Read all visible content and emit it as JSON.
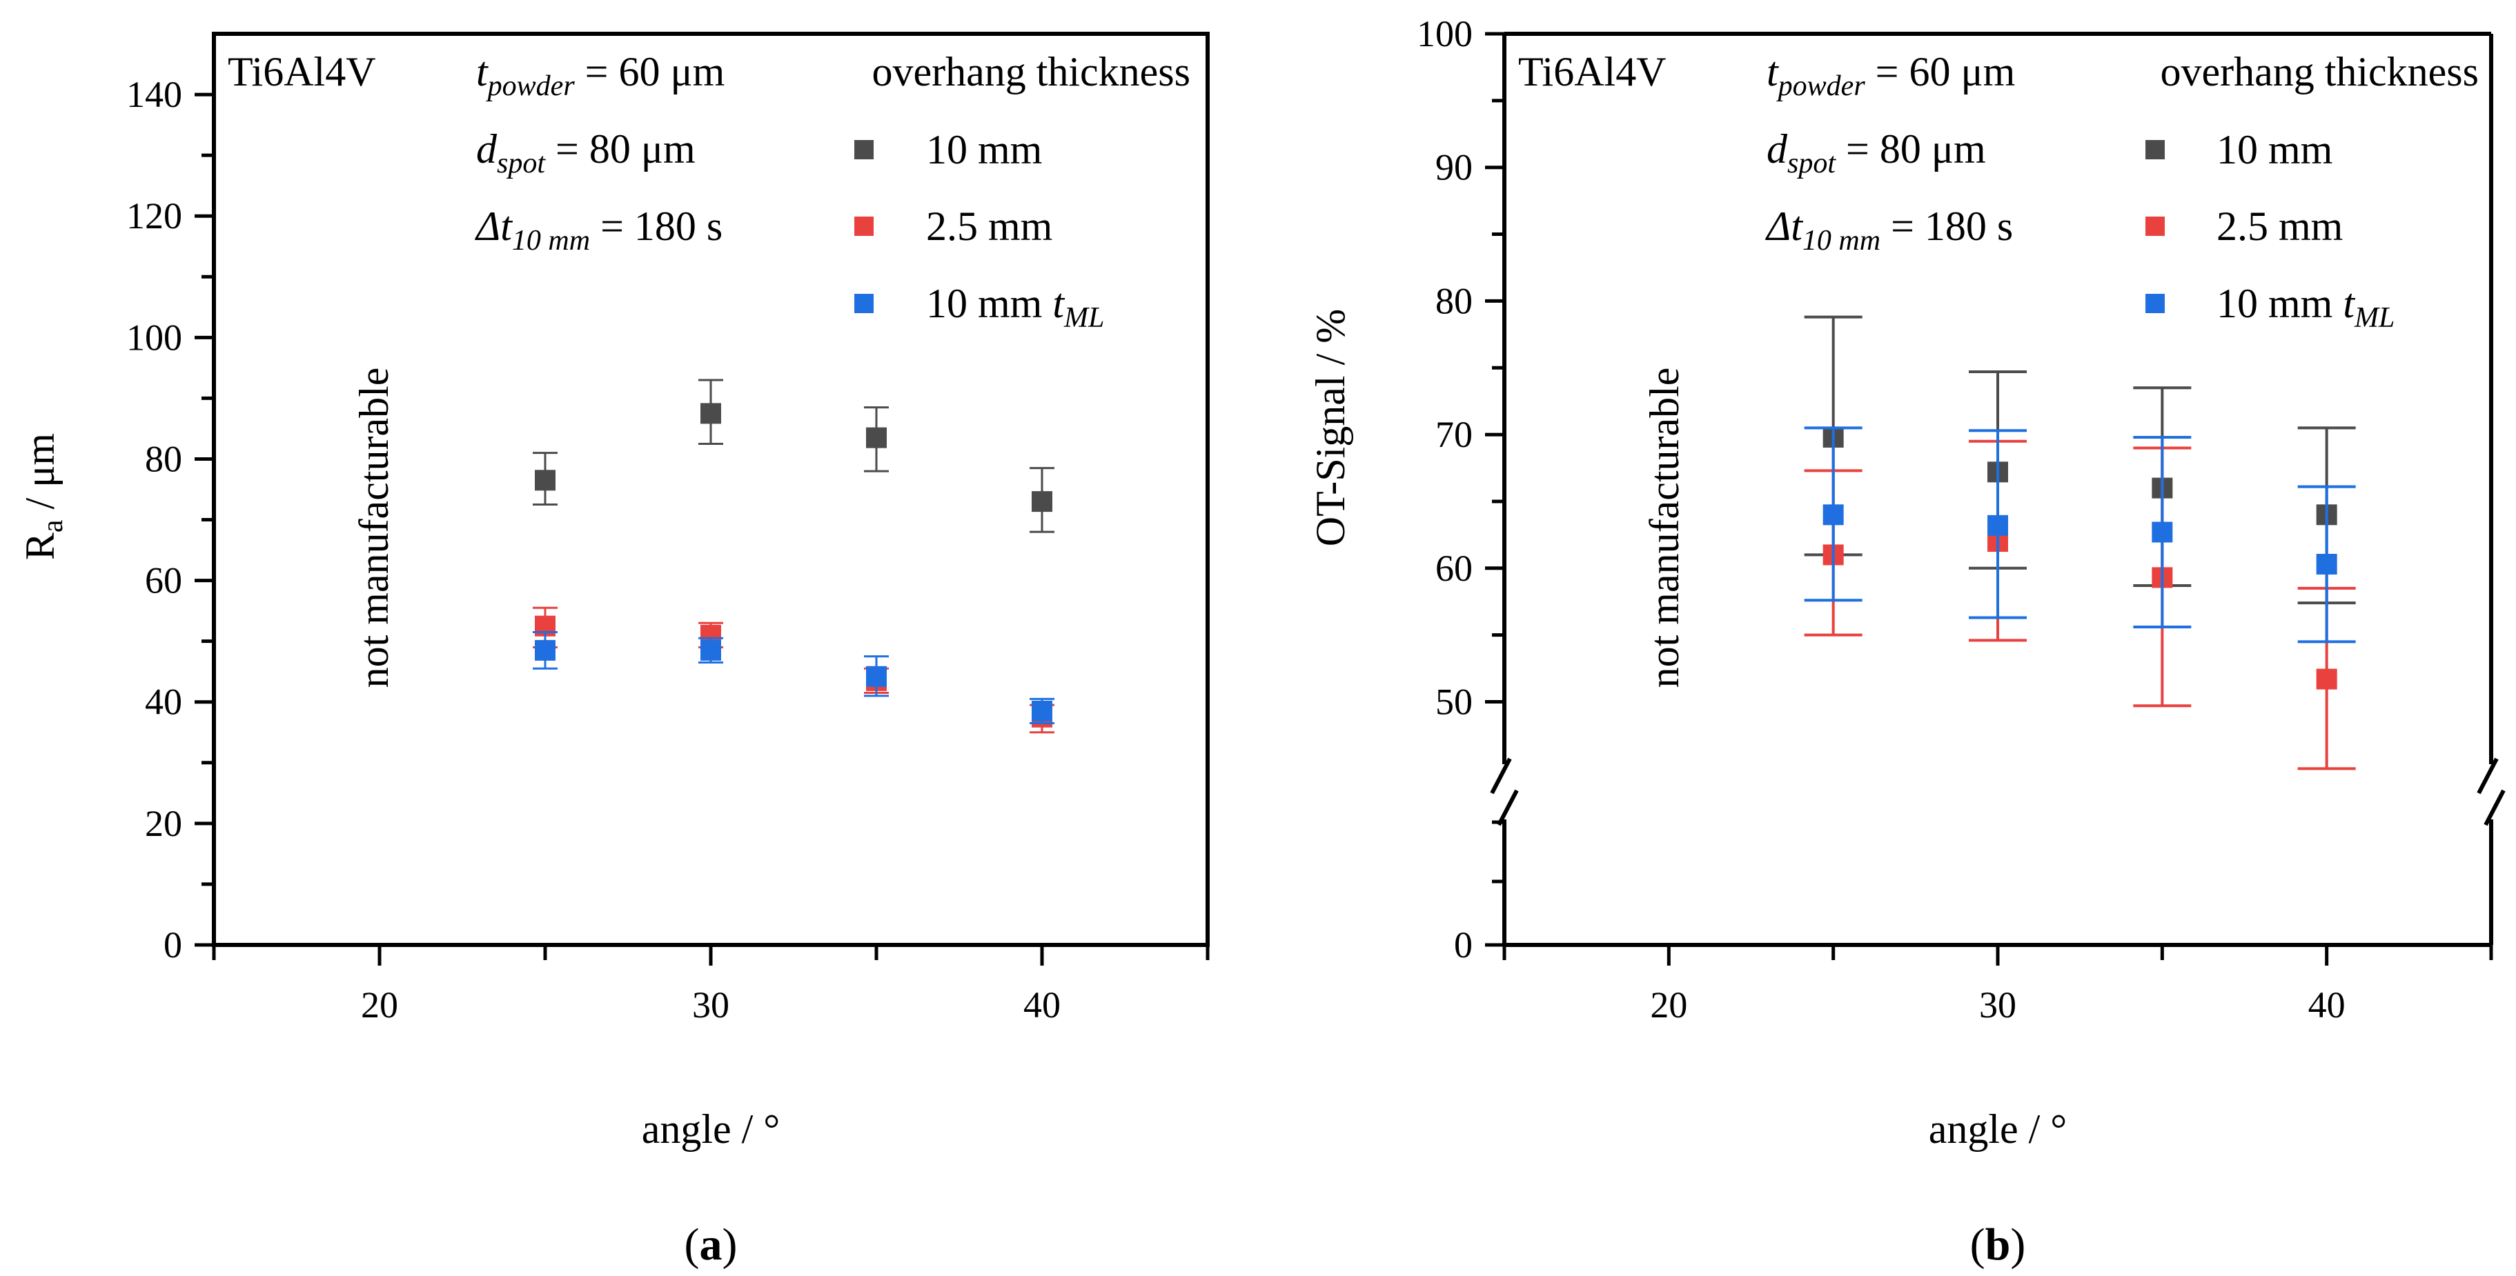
{
  "colors": {
    "thick_10mm": "#4b4b4b",
    "thick_2_5mm": "#e8413e",
    "thick_10mm_tml": "#1f6fe0"
  },
  "legend_title": "overhang thickness",
  "legend": [
    {
      "label": "10 mm",
      "sub": "",
      "color_key": "thick_10mm"
    },
    {
      "label": "2.5 mm",
      "sub": "",
      "color_key": "thick_2_5mm"
    },
    {
      "label": "10 mm t",
      "sub": "ML",
      "color_key": "thick_10mm_tml"
    }
  ],
  "params": {
    "material": "Ti6Al4V",
    "t_powder": {
      "sym": "t",
      "sub": "powder",
      "val": " = 60 μm"
    },
    "d_spot": {
      "sym": "d",
      "sub": "spot",
      "val": " = 80 μm"
    },
    "dt": {
      "sym": "Δt",
      "sub": "10 mm",
      "val": " = 180 s"
    }
  },
  "not_manufacturable": "not manufacturable",
  "chart_data": [
    {
      "type": "scatter",
      "panel_label": "(a)",
      "panel_letter": "a",
      "xlabel": "angle / °",
      "ylabel_main": "R",
      "ylabel_sub": "a",
      "ylabel_rest": " / μm",
      "xlim": [
        15,
        45
      ],
      "ylim": [
        0,
        150
      ],
      "xticks": [
        20,
        30,
        40
      ],
      "yticks": [
        0,
        20,
        40,
        60,
        80,
        100,
        120,
        140
      ],
      "yminor": [
        10,
        30,
        50,
        70,
        90,
        110,
        130
      ],
      "series": [
        {
          "name": "10 mm",
          "color_key": "thick_10mm",
          "points": [
            {
              "x": 25,
              "y": 76.5,
              "lo": 72.5,
              "hi": 81
            },
            {
              "x": 30,
              "y": 87.5,
              "lo": 82.5,
              "hi": 93
            },
            {
              "x": 35,
              "y": 83.5,
              "lo": 78,
              "hi": 88.5
            },
            {
              "x": 40,
              "y": 73,
              "lo": 68,
              "hi": 78.5
            }
          ]
        },
        {
          "name": "2.5 mm",
          "color_key": "thick_2_5mm",
          "points": [
            {
              "x": 25,
              "y": 52.5,
              "lo": 49,
              "hi": 55.5
            },
            {
              "x": 30,
              "y": 51,
              "lo": 49,
              "hi": 53
            },
            {
              "x": 35,
              "y": 43.5,
              "lo": 41.5,
              "hi": 45.5
            },
            {
              "x": 40,
              "y": 37.5,
              "lo": 35,
              "hi": 39.5
            }
          ]
        },
        {
          "name": "10 mm t_ML",
          "color_key": "thick_10mm_tml",
          "points": [
            {
              "x": 25,
              "y": 48.5,
              "lo": 45.5,
              "hi": 51.5
            },
            {
              "x": 30,
              "y": 48.5,
              "lo": 46.5,
              "hi": 50.5
            },
            {
              "x": 35,
              "y": 44.2,
              "lo": 41,
              "hi": 47.5
            },
            {
              "x": 40,
              "y": 38.5,
              "lo": 36.5,
              "hi": 40.5
            }
          ]
        }
      ]
    },
    {
      "type": "scatter",
      "panel_label": "(b)",
      "panel_letter": "b",
      "xlabel": "angle / °",
      "ylabel_main": "OT-Signal / %",
      "ylabel_sub": "",
      "ylabel_rest": "",
      "xlim": [
        15,
        45
      ],
      "ylim": [
        0,
        100
      ],
      "axis_break": true,
      "xticks": [
        20,
        30,
        40
      ],
      "yticks": [
        0,
        50,
        60,
        70,
        80,
        90,
        100
      ],
      "yminor": [
        55,
        65,
        75,
        85,
        95
      ],
      "series": [
        {
          "name": "10 mm",
          "color_key": "thick_10mm",
          "points": [
            {
              "x": 25,
              "y": 69.8,
              "lo": 61,
              "hi": 78.8
            },
            {
              "x": 30,
              "y": 67.2,
              "lo": 60,
              "hi": 74.7
            },
            {
              "x": 35,
              "y": 66,
              "lo": 58.7,
              "hi": 73.5
            },
            {
              "x": 40,
              "y": 64,
              "lo": 57.4,
              "hi": 70.5
            }
          ]
        },
        {
          "name": "2.5 mm",
          "color_key": "thick_2_5mm",
          "points": [
            {
              "x": 25,
              "y": 61,
              "lo": 55,
              "hi": 67.3
            },
            {
              "x": 30,
              "y": 62,
              "lo": 54.6,
              "hi": 69.5
            },
            {
              "x": 35,
              "y": 59.3,
              "lo": 49.7,
              "hi": 69
            },
            {
              "x": 40,
              "y": 51.7,
              "lo": 45,
              "hi": 58.5
            }
          ]
        },
        {
          "name": "10 mm t_ML",
          "color_key": "thick_10mm_tml",
          "points": [
            {
              "x": 25,
              "y": 64,
              "lo": 57.6,
              "hi": 70.5
            },
            {
              "x": 30,
              "y": 63.2,
              "lo": 56.3,
              "hi": 70.3
            },
            {
              "x": 35,
              "y": 62.7,
              "lo": 55.6,
              "hi": 69.8
            },
            {
              "x": 40,
              "y": 60.3,
              "lo": 54.5,
              "hi": 66.1
            }
          ]
        }
      ]
    }
  ]
}
